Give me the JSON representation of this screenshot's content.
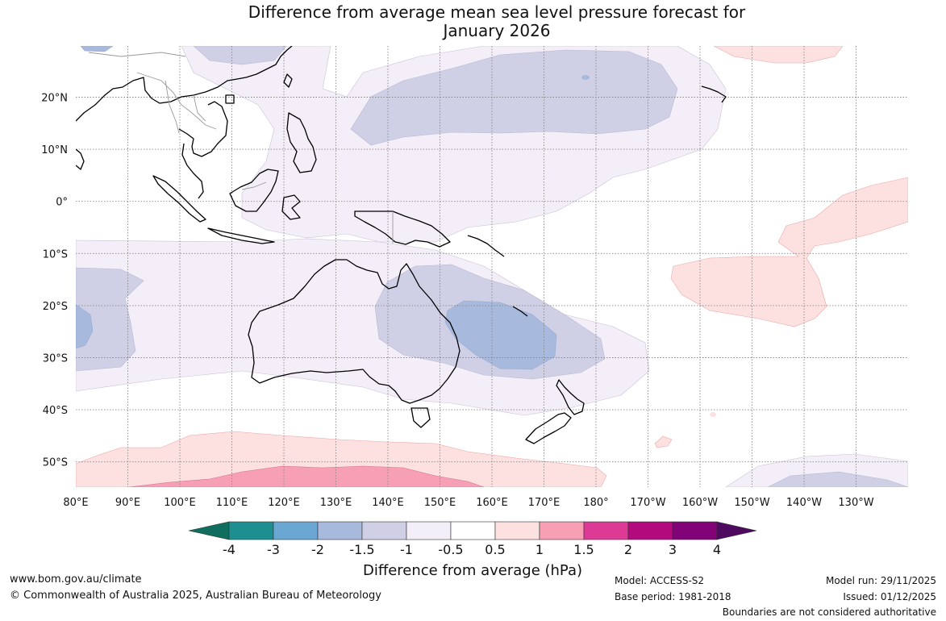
{
  "title": {
    "line1": "Difference from average mean sea level pressure forecast for",
    "line2": "January 2026"
  },
  "lat_labels": [
    "20°N",
    "10°N",
    "0°",
    "10°S",
    "20°S",
    "30°S",
    "40°S",
    "50°S"
  ],
  "lon_labels": [
    "80°E",
    "90°E",
    "100°E",
    "110°E",
    "120°E",
    "130°E",
    "140°E",
    "150°E",
    "160°E",
    "170°E",
    "180°",
    "170°W",
    "160°W",
    "150°W",
    "140°W",
    "130°W"
  ],
  "colorbar": {
    "title": "Difference from average (hPa)",
    "tick_labels": [
      "-4",
      "-3",
      "-2",
      "-1.5",
      "-1",
      "-0.5",
      "0.5",
      "1",
      "1.5",
      "2",
      "3",
      "4"
    ],
    "colors": [
      "#0f6e5e",
      "#1e8f91",
      "#6aa8d3",
      "#a7b9dc",
      "#cfd0e6",
      "#f3eef7",
      "#ffffff",
      "#fde0e0",
      "#f7a0b5",
      "#dd3a95",
      "#b30a7e",
      "#810377",
      "#4d0a5e"
    ]
  },
  "fill_colors": {
    "weak_negative": "#f3eef7",
    "moderate_negative": "#cfd0e6",
    "strong_negative": "#a7b9dc",
    "deep_negative": "#93aed6",
    "weak_positive": "#fde0e0",
    "moderate_positive": "#f7a0b5",
    "strong_positive": "#ec7aa8"
  },
  "footer": {
    "website": "www.bom.gov.au/climate",
    "copyright": "© Commonwealth of Australia 2025, Australian Bureau of Meteorology",
    "model": "Model: ACCESS-S2",
    "base_period": "Base period: 1981-2018",
    "model_run": "Model run: 29/11/2025",
    "issued": "Issued: 01/12/2025",
    "disclaimer": "Boundaries are not considered authoritative"
  }
}
